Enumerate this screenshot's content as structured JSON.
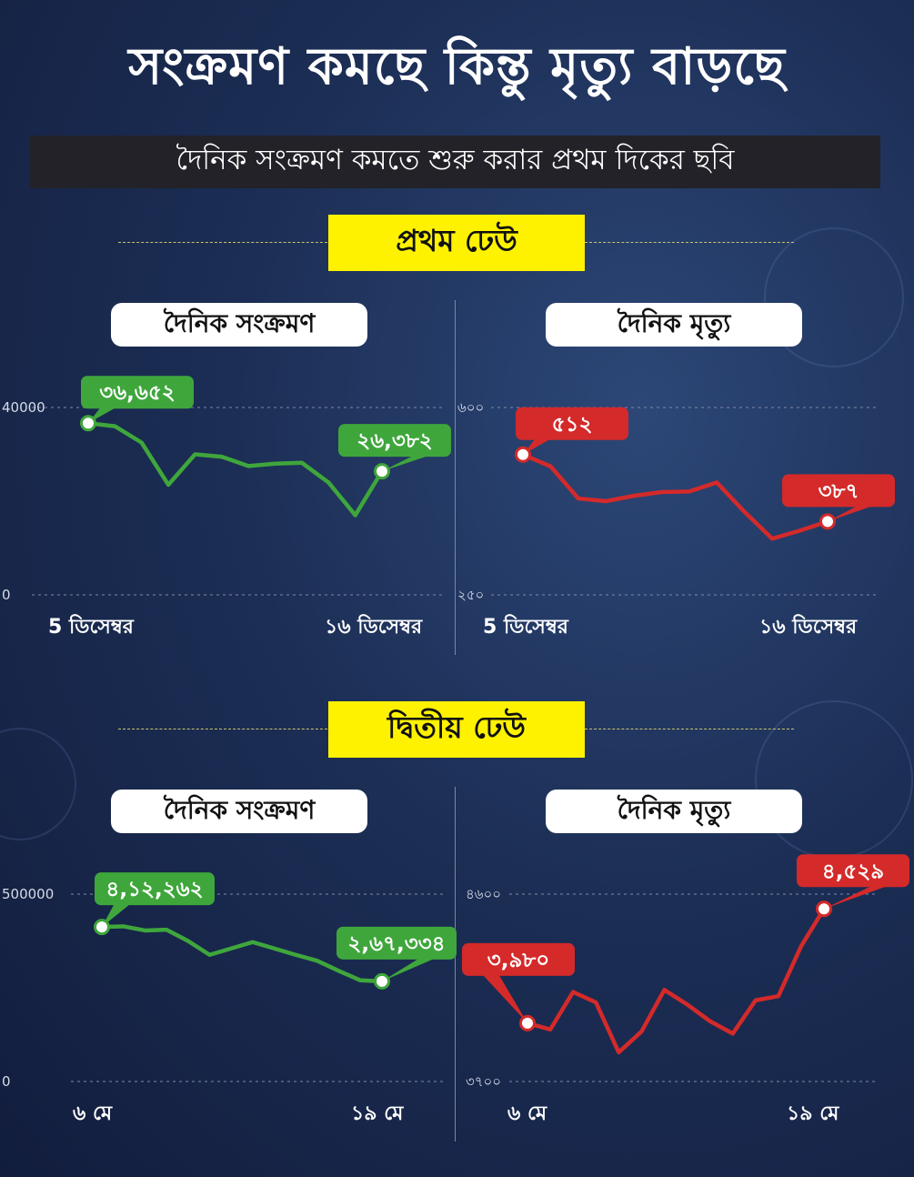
{
  "title": "সংক্রমণ কমছে কিন্তু মৃত্যু বাড়ছে",
  "subtitle": "দৈনিক সংক্রমণ কমতে শুরু করার প্রথম দিকের ছবি",
  "colors": {
    "infection": "#3fa63c",
    "death": "#d42a2a",
    "banner": "#fff200"
  },
  "waves": [
    {
      "banner": "প্রথম ঢেউ",
      "panels": [
        {
          "label": "দৈনিক সংক্রমণ",
          "xstart": "5 ডিসেম্বর",
          "xend": "১৬ ডিসেম্বর"
        },
        {
          "label": "দৈনিক মৃত্যু",
          "xstart": "5 ডিসেম্বর",
          "xend": "১৬ ডিসেম্বর"
        }
      ]
    },
    {
      "banner": "দ্বিতীয় ঢেউ",
      "panels": [
        {
          "label": "দৈনিক সংক্রমণ",
          "xstart": "৬ মে",
          "xend": "১৯ মে"
        },
        {
          "label": "দৈনিক মৃত্যু",
          "xstart": "৬ মে",
          "xend": "১৯ মে"
        }
      ]
    }
  ],
  "chart_data": [
    {
      "type": "line",
      "title": "দৈনিক সংক্রমণ",
      "x": [
        "5 ডিসেম্বর",
        "",
        "",
        "",
        "",
        "",
        "",
        "",
        "",
        "",
        "",
        "১৬ ডিসেম্বর"
      ],
      "series": [
        {
          "values": [
            36652,
            36000,
            32500,
            23500,
            30000,
            29500,
            27500,
            28000,
            28200,
            24000,
            17000,
            26382
          ]
        }
      ],
      "ylim": [
        0,
        40000
      ],
      "yticks": [
        "0",
        "40000"
      ],
      "callouts": [
        {
          "index": 0,
          "text": "৩৬,৬৫২"
        },
        {
          "index": 11,
          "text": "২৬,৩৮২"
        }
      ],
      "color": "#3fa63c"
    },
    {
      "type": "line",
      "title": "দৈনিক মৃত্যু",
      "x": [
        "5 ডিসেম্বর",
        "",
        "",
        "",
        "",
        "",
        "",
        "",
        "",
        "",
        "",
        "১৬ ডিসেম্বর"
      ],
      "series": [
        {
          "values": [
            512,
            490,
            430,
            425,
            435,
            442,
            443,
            460,
            405,
            355,
            370,
            387
          ]
        }
      ],
      "ylim": [
        250,
        600
      ],
      "yticks": [
        "২৫০",
        "৬০০"
      ],
      "callouts": [
        {
          "index": 0,
          "text": "৫১২"
        },
        {
          "index": 11,
          "text": "৩৮৭"
        }
      ],
      "color": "#d42a2a"
    },
    {
      "type": "line",
      "title": "দৈনিক সংক্রমণ",
      "x": [
        "৬ মে",
        "",
        "",
        "",
        "",
        "",
        "",
        "",
        "",
        "",
        "",
        "",
        "",
        "১৯ মে"
      ],
      "series": [
        {
          "values": [
            412262,
            414000,
            403000,
            405000,
            375000,
            338000,
            355000,
            372000,
            355000,
            338000,
            322000,
            295000,
            270000,
            267334
          ]
        }
      ],
      "ylim": [
        0,
        500000
      ],
      "yticks": [
        "0",
        "500000"
      ],
      "callouts": [
        {
          "index": 0,
          "text": "৪,১২,২৬২"
        },
        {
          "index": 13,
          "text": "২,৬৭,৩৩৪"
        }
      ],
      "color": "#3fa63c"
    },
    {
      "type": "line",
      "title": "দৈনিক মৃত্যু",
      "x": [
        "৬ মে",
        "",
        "",
        "",
        "",
        "",
        "",
        "",
        "",
        "",
        "",
        "",
        "",
        "১৯ মে"
      ],
      "series": [
        {
          "values": [
            3980,
            3950,
            4130,
            4080,
            3840,
            3940,
            4140,
            4070,
            3990,
            3930,
            4090,
            4110,
            4350,
            4529
          ]
        }
      ],
      "ylim": [
        3700,
        4600
      ],
      "yticks": [
        "৩৭০০",
        "৪৬০০"
      ],
      "callouts": [
        {
          "index": 0,
          "text": "৩,৯৮০"
        },
        {
          "index": 13,
          "text": "৪,৫২৯"
        }
      ],
      "color": "#d42a2a"
    }
  ]
}
